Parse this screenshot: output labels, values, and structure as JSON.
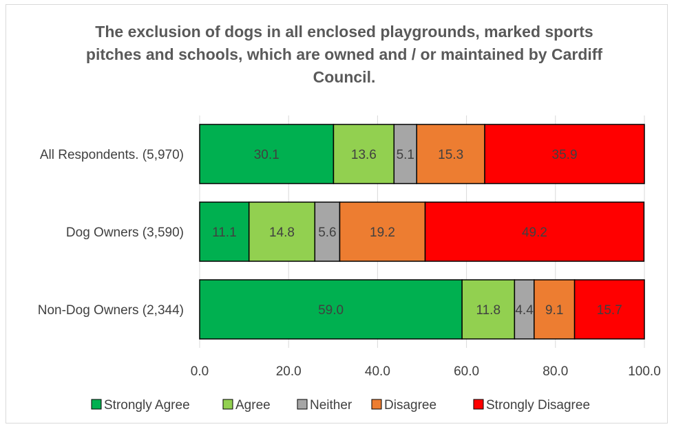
{
  "chart_data": {
    "type": "bar",
    "orientation": "horizontal",
    "stacked": true,
    "title": "The exclusion of dogs in all enclosed playgrounds, marked sports pitches and schools, which are owned and / or maintained by Cardiff Council.",
    "categories": [
      "All Respondents. (5,970)",
      "Dog Owners (3,590)",
      "Non-Dog Owners (2,344)"
    ],
    "series": [
      {
        "name": "Strongly Agree",
        "color": "#00b050",
        "values": [
          30.1,
          11.1,
          59.0
        ],
        "labels": [
          "30.1",
          "11.1",
          "59.0"
        ]
      },
      {
        "name": "Agree",
        "color": "#92d050",
        "values": [
          13.6,
          14.8,
          11.8
        ],
        "labels": [
          "13.6",
          "14.8",
          "11.8"
        ]
      },
      {
        "name": "Neither",
        "color": "#a6a6a6",
        "values": [
          5.1,
          5.6,
          4.4
        ],
        "labels": [
          "5.1",
          "5.6",
          "4.4"
        ]
      },
      {
        "name": "Disagree",
        "color": "#ed7d31",
        "values": [
          15.3,
          19.2,
          9.1
        ],
        "labels": [
          "15.3",
          "19.2",
          "9.1"
        ]
      },
      {
        "name": "Strongly Disagree",
        "color": "#ff0000",
        "values": [
          35.9,
          49.2,
          15.7
        ],
        "labels": [
          "35.9",
          "49.2",
          "15.7"
        ]
      }
    ],
    "xlim": [
      0,
      100
    ],
    "xticks": [
      "0.0",
      "20.0",
      "40.0",
      "60.0",
      "80.0",
      "100.0"
    ],
    "grid": true,
    "legend": "bottom"
  }
}
